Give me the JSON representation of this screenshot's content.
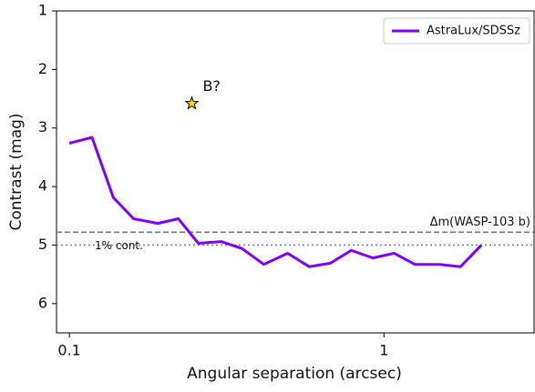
{
  "chart_data": {
    "type": "line",
    "xlabel": "Angular separation (arcsec)",
    "ylabel": "Contrast (mag)",
    "xscale": "log",
    "xlim": [
      0.091,
      3.0
    ],
    "xticks": [
      0.1,
      1
    ],
    "ylim": [
      6.5,
      1
    ],
    "yticks": [
      1,
      2,
      3,
      4,
      5,
      6
    ],
    "legend": "upper right",
    "series": [
      {
        "name": "AstraLux/SDSSz",
        "color": "#8000ff",
        "x": [
          0.1,
          0.118,
          0.138,
          0.16,
          0.191,
          0.222,
          0.257,
          0.304,
          0.354,
          0.415,
          0.494,
          0.579,
          0.675,
          0.787,
          0.922,
          1.077,
          1.254,
          1.5,
          1.75,
          2.04
        ],
        "values": [
          3.26,
          3.16,
          4.19,
          4.55,
          4.63,
          4.55,
          4.97,
          4.94,
          5.06,
          5.33,
          5.14,
          5.37,
          5.31,
          5.09,
          5.22,
          5.14,
          5.33,
          5.33,
          5.37,
          5.0
        ]
      }
    ],
    "points": [
      {
        "label": "B?",
        "x": 0.245,
        "y": 2.58,
        "color": "#ffd21f"
      }
    ],
    "hlines": [
      {
        "label": "Δm(WASP-103 b)",
        "value": 4.78,
        "style": "dashed",
        "color": "#777777"
      },
      {
        "label": "1% cont.",
        "value": 5.0,
        "style": "dotted",
        "color": "#888888"
      }
    ]
  }
}
